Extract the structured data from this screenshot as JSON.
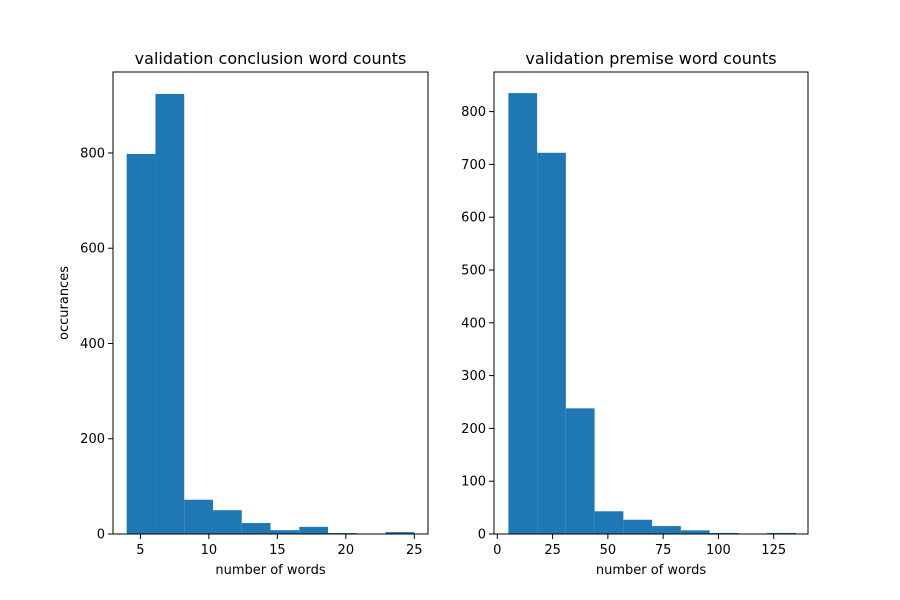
{
  "chart_data": [
    {
      "type": "bar",
      "title": "validation conclusion word counts",
      "xlabel": "number of words",
      "ylabel": "occurances",
      "xlim": [
        3.0,
        26.0
      ],
      "ylim": [
        0,
        970
      ],
      "xticks": [
        5,
        10,
        15,
        20,
        25
      ],
      "yticks": [
        0,
        200,
        400,
        600,
        800
      ],
      "grid": false,
      "bar_color": "#1f77b4",
      "bins": [
        {
          "x0": 4.0,
          "x1": 6.1,
          "value": 798
        },
        {
          "x0": 6.1,
          "x1": 8.2,
          "value": 924
        },
        {
          "x0": 8.2,
          "x1": 10.3,
          "value": 72
        },
        {
          "x0": 10.3,
          "x1": 12.4,
          "value": 50
        },
        {
          "x0": 12.4,
          "x1": 14.5,
          "value": 23
        },
        {
          "x0": 14.5,
          "x1": 16.6,
          "value": 8
        },
        {
          "x0": 16.6,
          "x1": 18.7,
          "value": 15
        },
        {
          "x0": 18.7,
          "x1": 20.8,
          "value": 2
        },
        {
          "x0": 20.8,
          "x1": 22.9,
          "value": 0
        },
        {
          "x0": 22.9,
          "x1": 25.0,
          "value": 4
        }
      ]
    },
    {
      "type": "bar",
      "title": "validation premise word counts",
      "xlabel": "number of words",
      "ylabel": "",
      "xlim": [
        -1.5,
        140.5
      ],
      "ylim": [
        0,
        875
      ],
      "xticks": [
        0,
        25,
        50,
        75,
        100,
        125
      ],
      "yticks": [
        0,
        100,
        200,
        300,
        400,
        500,
        600,
        700,
        800
      ],
      "grid": false,
      "bar_color": "#1f77b4",
      "bins": [
        {
          "x0": 5.0,
          "x1": 18.0,
          "value": 835
        },
        {
          "x0": 18.0,
          "x1": 31.0,
          "value": 722
        },
        {
          "x0": 31.0,
          "x1": 44.0,
          "value": 238
        },
        {
          "x0": 44.0,
          "x1": 57.0,
          "value": 43
        },
        {
          "x0": 57.0,
          "x1": 70.0,
          "value": 27
        },
        {
          "x0": 70.0,
          "x1": 83.0,
          "value": 15
        },
        {
          "x0": 83.0,
          "x1": 96.0,
          "value": 7
        },
        {
          "x0": 96.0,
          "x1": 109.0,
          "value": 2
        },
        {
          "x0": 109.0,
          "x1": 122.0,
          "value": 0
        },
        {
          "x0": 122.0,
          "x1": 135.0,
          "value": 2
        }
      ]
    }
  ]
}
